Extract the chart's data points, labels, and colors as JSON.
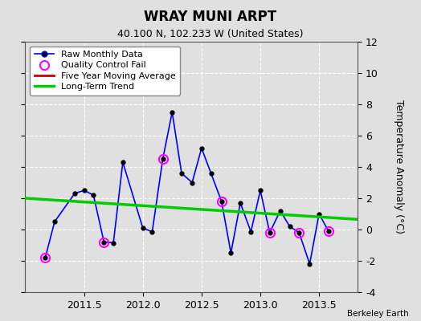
{
  "title": "WRAY MUNI ARPT",
  "subtitle": "40.100 N, 102.233 W (United States)",
  "watermark": "Berkeley Earth",
  "ylabel": "Temperature Anomaly (°C)",
  "xlim": [
    2011.0,
    2013.83
  ],
  "ylim": [
    -4,
    12
  ],
  "yticks": [
    -4,
    -2,
    0,
    2,
    4,
    6,
    8,
    10,
    12
  ],
  "xticks": [
    2011.5,
    2012.0,
    2012.5,
    2013.0,
    2013.5
  ],
  "bg_color": "#e0e0e0",
  "plot_bg_color": "#e0e0e0",
  "raw_x": [
    2011.17,
    2011.25,
    2011.42,
    2011.5,
    2011.58,
    2011.67,
    2011.75,
    2011.83,
    2012.0,
    2012.08,
    2012.17,
    2012.25,
    2012.33,
    2012.42,
    2012.5,
    2012.58,
    2012.67,
    2012.75,
    2012.83,
    2012.92,
    2013.0,
    2013.08,
    2013.17,
    2013.25,
    2013.33,
    2013.42,
    2013.5,
    2013.58
  ],
  "raw_y": [
    -1.8,
    0.5,
    2.3,
    2.5,
    2.2,
    -0.8,
    -0.85,
    4.3,
    0.1,
    -0.15,
    4.5,
    7.5,
    3.6,
    3.0,
    5.2,
    3.6,
    1.8,
    -1.5,
    1.7,
    -0.15,
    2.5,
    -0.2,
    1.2,
    0.2,
    -0.2,
    -2.2,
    1.0,
    -0.1
  ],
  "qc_fail_x": [
    2011.17,
    2011.67,
    2012.17,
    2012.67,
    2013.08,
    2013.33,
    2013.58
  ],
  "qc_fail_y": [
    -1.8,
    -0.8,
    4.5,
    1.8,
    -0.2,
    -0.2,
    -0.1
  ],
  "trend_x": [
    2011.0,
    2013.83
  ],
  "trend_y": [
    2.0,
    0.65
  ],
  "raw_line_color": "#0000ff",
  "raw_marker_color": "#000000",
  "qc_color": "#ff00ff",
  "trend_color": "#00cc00",
  "moving_avg_color": "#cc0000",
  "legend_fontsize": 8,
  "tick_fontsize": 9,
  "title_fontsize": 12,
  "subtitle_fontsize": 9
}
